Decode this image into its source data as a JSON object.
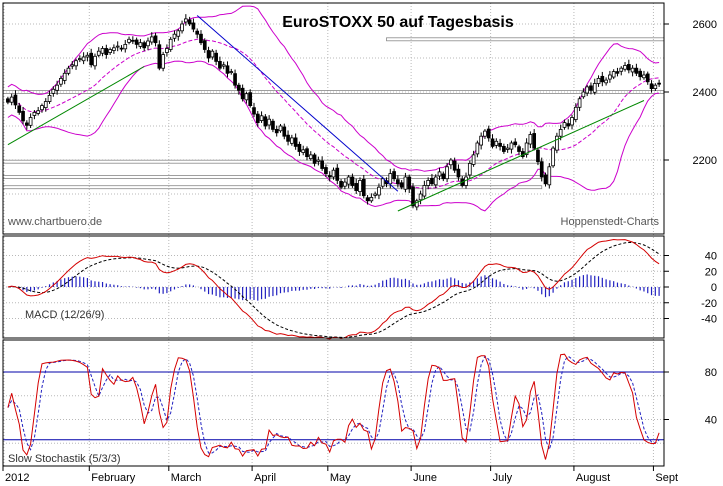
{
  "chart_data": [
    {
      "type": "candlestick",
      "title": "EuroSTOXX 50 auf Tagesbasis",
      "watermark_left": "www.chartbuero.de",
      "watermark_right": "Hoppenstedt-Charts",
      "y_ticks": [
        2200,
        2400,
        2600
      ],
      "ylim": [
        1990,
        2680
      ],
      "grid": true,
      "x_month_labels": [
        "2012",
        "February",
        "March",
        "April",
        "May",
        "June",
        "July",
        "August",
        "Sept"
      ],
      "x_month_index": [
        0,
        22,
        43,
        65,
        85,
        107,
        128,
        150,
        171
      ],
      "close": [
        2370,
        2385,
        2362,
        2340,
        2315,
        2302,
        2325,
        2340,
        2345,
        2360,
        2372,
        2390,
        2408,
        2420,
        2440,
        2455,
        2470,
        2480,
        2492,
        2498,
        2503,
        2508,
        2480,
        2505,
        2520,
        2528,
        2510,
        2525,
        2530,
        2535,
        2527,
        2540,
        2555,
        2550,
        2540,
        2545,
        2530,
        2550,
        2562,
        2545,
        2470,
        2510,
        2528,
        2555,
        2570,
        2580,
        2600,
        2615,
        2600,
        2585,
        2570,
        2545,
        2525,
        2500,
        2520,
        2490,
        2470,
        2480,
        2455,
        2460,
        2420,
        2405,
        2380,
        2395,
        2360,
        2335,
        2310,
        2330,
        2300,
        2320,
        2290,
        2280,
        2300,
        2270,
        2255,
        2265,
        2240,
        2225,
        2230,
        2210,
        2215,
        2190,
        2200,
        2175,
        2160,
        2150,
        2170,
        2140,
        2120,
        2135,
        2150,
        2125,
        2110,
        2140,
        2095,
        2080,
        2090,
        2100,
        2120,
        2145,
        2130,
        2160,
        2145,
        2130,
        2120,
        2150,
        2115,
        2065,
        2080,
        2100,
        2125,
        2140,
        2130,
        2150,
        2165,
        2145,
        2180,
        2200,
        2170,
        2150,
        2125,
        2150,
        2190,
        2215,
        2250,
        2270,
        2285,
        2265,
        2240,
        2255,
        2240,
        2225,
        2235,
        2250,
        2245,
        2225,
        2210,
        2250,
        2275,
        2235,
        2195,
        2150,
        2130,
        2180,
        2235,
        2270,
        2290,
        2310,
        2300,
        2325,
        2355,
        2380,
        2400,
        2415,
        2405,
        2425,
        2440,
        2430,
        2435,
        2450,
        2460,
        2455,
        2470,
        2478,
        2465,
        2470,
        2455,
        2445,
        2450,
        2430,
        2410,
        2420,
        2425
      ],
      "regression_line_1": {
        "x": [
          0,
          36
        ],
        "y": [
          2245,
          2475
        ]
      },
      "downtrend_line": {
        "x": [
          50,
          103
        ],
        "y": [
          2625,
          2108
        ]
      },
      "uptrend_line": {
        "x": [
          103,
          168
        ],
        "y": [
          2050,
          2375
        ]
      },
      "horizontal_levels": [
        2555,
        2400,
        2195,
        2150,
        2120
      ]
    },
    {
      "type": "line",
      "title": "MACD (12/26/9)",
      "y_ticks": [
        40,
        20,
        0,
        -20,
        -40
      ],
      "ylim": [
        -75,
        75
      ],
      "series": [
        {
          "name": "MACD",
          "color": "#d40000"
        },
        {
          "name": "Signal",
          "color": "#000000"
        },
        {
          "name": "Histogram",
          "color": "#2020c0"
        }
      ]
    },
    {
      "type": "line",
      "title": "Slow Stochastik (5/3/3)",
      "y_ticks": [
        80,
        40
      ],
      "ylim": [
        5,
        105
      ],
      "reference_lines": [
        80,
        23
      ],
      "series": [
        {
          "name": "%K",
          "color": "#d40000"
        },
        {
          "name": "%D",
          "color": "#2020c0"
        }
      ]
    }
  ],
  "colors": {
    "candle_up": "#ffffff",
    "candle_down": "#000000",
    "bollinger": "#cc00cc",
    "moving_average": "#cc00cc",
    "trend_down": "#0000cc",
    "trend_up": "#008800",
    "regression": "#008800",
    "horizontal": "#888888",
    "grid": "#b8b8b8",
    "macd": "#d40000",
    "signal": "#000000",
    "histogram": "#2020c0",
    "stoch_k": "#d40000",
    "stoch_d": "#2020c0"
  }
}
